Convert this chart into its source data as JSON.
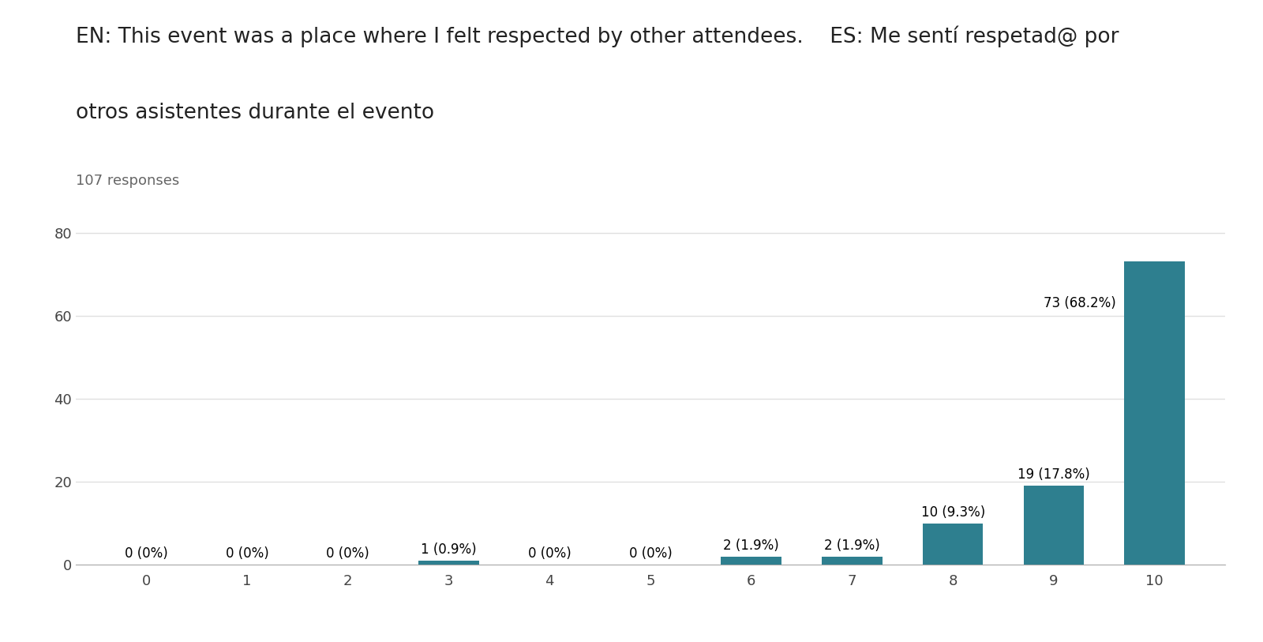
{
  "title_line1": "EN: This event was a place where I felt respected by other attendees.    ES: Me sentí respetad@ por",
  "title_line2": "otros asistentes durante el evento",
  "subtitle": "107 responses",
  "categories": [
    0,
    1,
    2,
    3,
    4,
    5,
    6,
    7,
    8,
    9,
    10
  ],
  "values": [
    0,
    0,
    0,
    1,
    0,
    0,
    2,
    2,
    10,
    19,
    73
  ],
  "labels": [
    "0 (0%)",
    "0 (0%)",
    "0 (0%)",
    "1 (0.9%)",
    "0 (0%)",
    "0 (0%)",
    "2 (1.9%)",
    "2 (1.9%)",
    "10 (9.3%)",
    "19 (17.8%)",
    "73 (68.2%)"
  ],
  "bar_color": "#2e7f8f",
  "background_color": "#ffffff",
  "grid_color": "#e0e0e0",
  "ylim": [
    0,
    85
  ],
  "yticks": [
    0,
    20,
    40,
    60,
    80
  ],
  "title_fontsize": 19,
  "subtitle_fontsize": 13,
  "label_fontsize": 12,
  "tick_fontsize": 13
}
